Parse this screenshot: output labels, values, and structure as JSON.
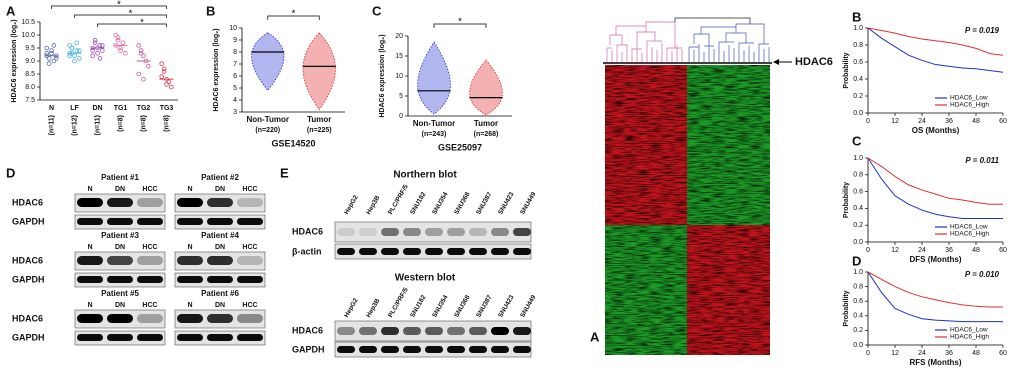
{
  "chart_data": [
    {
      "type": "scatter",
      "panel": "A",
      "ylabel": "HDAC6 expression (log₂)",
      "categories": [
        "N",
        "LF",
        "DN",
        "TG1",
        "TG2",
        "TG3"
      ],
      "group_sizes": [
        "(n=11)",
        "(n=12)",
        "(n=11)",
        "(n=8)",
        "(n=8)",
        "(n=8)"
      ],
      "colors": [
        "#5a6fa8",
        "#4fb6d8",
        "#9b59b6",
        "#e06ca8",
        "#c0609a",
        "#e04050"
      ],
      "values": [
        [
          9.3,
          9.1,
          9.4,
          9.0,
          9.2,
          9.5,
          8.9,
          9.3,
          9.6,
          9.1,
          9.2
        ],
        [
          9.3,
          9.5,
          9.2,
          9.4,
          9.1,
          9.6,
          9.3,
          9.0,
          9.7,
          9.4,
          9.2,
          9.5
        ],
        [
          9.5,
          9.7,
          9.3,
          9.6,
          9.4,
          9.2,
          9.8,
          9.5,
          9.1,
          9.6,
          9.4
        ],
        [
          10.0,
          9.8,
          9.5,
          9.7,
          9.3,
          9.6,
          9.9,
          9.4
        ],
        [
          9.6,
          9.4,
          9.2,
          9.0,
          8.8,
          8.5,
          9.3,
          8.3
        ],
        [
          8.9,
          8.6,
          8.3,
          8.2,
          8.0,
          8.4,
          8.7,
          8.1
        ]
      ],
      "means": [
        9.2,
        9.3,
        9.5,
        9.6,
        9.0,
        8.3
      ],
      "ylim": [
        7.5,
        10.5
      ],
      "yticks": [
        7.5,
        {
          "value": 8,
          "label": "8.0"
        },
        8.5,
        {
          "value": 9,
          "label": "9.0"
        },
        9.5,
        {
          "value": 10,
          "label": "10.0"
        },
        10.5
      ],
      "annotations": [
        "*",
        "*",
        "*"
      ]
    },
    {
      "type": "strip",
      "panel": "B",
      "ylabel": "HDAC6 expression (log₂)",
      "categories": [
        "Non-Tumor",
        "Tumor"
      ],
      "group_sizes": [
        "(n=220)",
        "(n=225)"
      ],
      "colors": [
        "#1f2fd0",
        "#e02020"
      ],
      "means": [
        8.0,
        6.8
      ],
      "mins": [
        4.8,
        3.2
      ],
      "maxs": [
        9.6,
        9.6
      ],
      "ylim": [
        3,
        10
      ],
      "yticks": [
        3,
        4,
        5,
        6,
        7,
        8,
        9,
        10
      ],
      "caption": "GSE14520",
      "annotations": [
        "*"
      ]
    },
    {
      "type": "strip",
      "panel": "C",
      "ylabel": "HDAC6 expression (log₂)",
      "categories": [
        "Non-Tumor",
        "Tumor"
      ],
      "group_sizes": [
        "(n=243)",
        "(n=268)"
      ],
      "colors": [
        "#1f2fd0",
        "#e02020"
      ],
      "means": [
        6.3,
        4.6
      ],
      "mins": [
        0.5,
        0.3
      ],
      "maxs": [
        18.5,
        14
      ],
      "ylim": [
        0,
        20
      ],
      "yticks": [
        0,
        5,
        10,
        15,
        20
      ],
      "caption": "GSE25097",
      "annotations": [
        "*"
      ]
    },
    {
      "type": "line",
      "panel": "B",
      "annotation": "P = 0.019",
      "xlabel": "OS (Months)",
      "ylabel": "Probability",
      "x": [
        0,
        6,
        12,
        18,
        24,
        30,
        36,
        42,
        48,
        54,
        60
      ],
      "series": [
        {
          "name": "HDAC6_Low",
          "color": "#2030c0",
          "values": [
            1,
            0.88,
            0.78,
            0.68,
            0.62,
            0.57,
            0.55,
            0.53,
            0.52,
            0.5,
            0.48
          ]
        },
        {
          "name": "HDAC6_High",
          "color": "#e03030",
          "values": [
            1,
            0.97,
            0.94,
            0.9,
            0.87,
            0.85,
            0.83,
            0.8,
            0.76,
            0.7,
            0.68
          ]
        }
      ],
      "xlim": [
        0,
        60
      ],
      "xticks": [
        0,
        12,
        24,
        36,
        48,
        60
      ],
      "ylim": [
        0,
        1
      ],
      "yticks": [
        {
          "value": 0,
          "label": "0.0"
        },
        0.2,
        0.4,
        0.6,
        0.8,
        {
          "value": 1,
          "label": "1.0"
        }
      ],
      "legend": "lower right"
    },
    {
      "type": "line",
      "panel": "C",
      "annotation": "P = 0.011",
      "xlabel": "DFS (Months)",
      "ylabel": "Probability",
      "x": [
        0,
        6,
        12,
        18,
        24,
        30,
        36,
        42,
        48,
        54,
        60
      ],
      "series": [
        {
          "name": "HDAC6_Low",
          "color": "#2030c0",
          "values": [
            1,
            0.75,
            0.55,
            0.45,
            0.38,
            0.33,
            0.3,
            0.28,
            0.28,
            0.28,
            0.28
          ]
        },
        {
          "name": "HDAC6_High",
          "color": "#e03030",
          "values": [
            1,
            0.9,
            0.78,
            0.68,
            0.62,
            0.57,
            0.52,
            0.5,
            0.47,
            0.45,
            0.45
          ]
        }
      ],
      "xlim": [
        0,
        60
      ],
      "xticks": [
        0,
        12,
        24,
        36,
        48,
        60
      ],
      "ylim": [
        0,
        1
      ],
      "yticks": [
        {
          "value": 0,
          "label": "0.0"
        },
        0.2,
        0.4,
        0.6,
        0.8,
        {
          "value": 1,
          "label": "1.0"
        }
      ],
      "legend": "lower right"
    },
    {
      "type": "line",
      "panel": "D",
      "annotation": "P = 0.010",
      "xlabel": "RFS (Months)",
      "ylabel": "Probability",
      "x": [
        0,
        6,
        12,
        18,
        24,
        30,
        36,
        42,
        48,
        54,
        60
      ],
      "series": [
        {
          "name": "HDAC6_Low",
          "color": "#2030c0",
          "values": [
            1,
            0.72,
            0.5,
            0.42,
            0.36,
            0.34,
            0.33,
            0.32,
            0.32,
            0.32,
            0.32
          ]
        },
        {
          "name": "HDAC6_High",
          "color": "#e03030",
          "values": [
            1,
            0.9,
            0.8,
            0.72,
            0.66,
            0.62,
            0.58,
            0.55,
            0.53,
            0.52,
            0.52
          ]
        }
      ],
      "xlim": [
        0,
        60
      ],
      "xticks": [
        0,
        12,
        24,
        36,
        48,
        60
      ],
      "ylim": [
        0,
        1
      ],
      "yticks": [
        {
          "value": 0,
          "label": "0.0"
        },
        0.2,
        0.4,
        0.6,
        0.8,
        {
          "value": 1,
          "label": "1.0"
        }
      ],
      "legend": "lower right"
    }
  ],
  "blot_panel_d": {
    "label": "D",
    "rows": [
      "HDAC6",
      "GAPDH"
    ],
    "lanes": [
      "N",
      "DN",
      "HCC"
    ],
    "patients": [
      "Patient #1",
      "Patient #2",
      "Patient #3",
      "Patient #4",
      "Patient #5",
      "Patient #6"
    ]
  },
  "blot_panel_e": {
    "label": "E",
    "cell_lines": [
      "HepG2",
      "Hep3B",
      "PLC/PRF/5",
      "SNU182",
      "SNU354",
      "SNU368",
      "SNU387",
      "SNU423",
      "SNU449"
    ],
    "northern": {
      "title": "Northern blot",
      "rows": [
        "HDAC6",
        "β-actin"
      ]
    },
    "western": {
      "title": "Western blot",
      "rows": [
        "HDAC6",
        "GAPDH"
      ]
    }
  },
  "heatmap_panel": {
    "label": "A",
    "gene": "HDAC6"
  }
}
